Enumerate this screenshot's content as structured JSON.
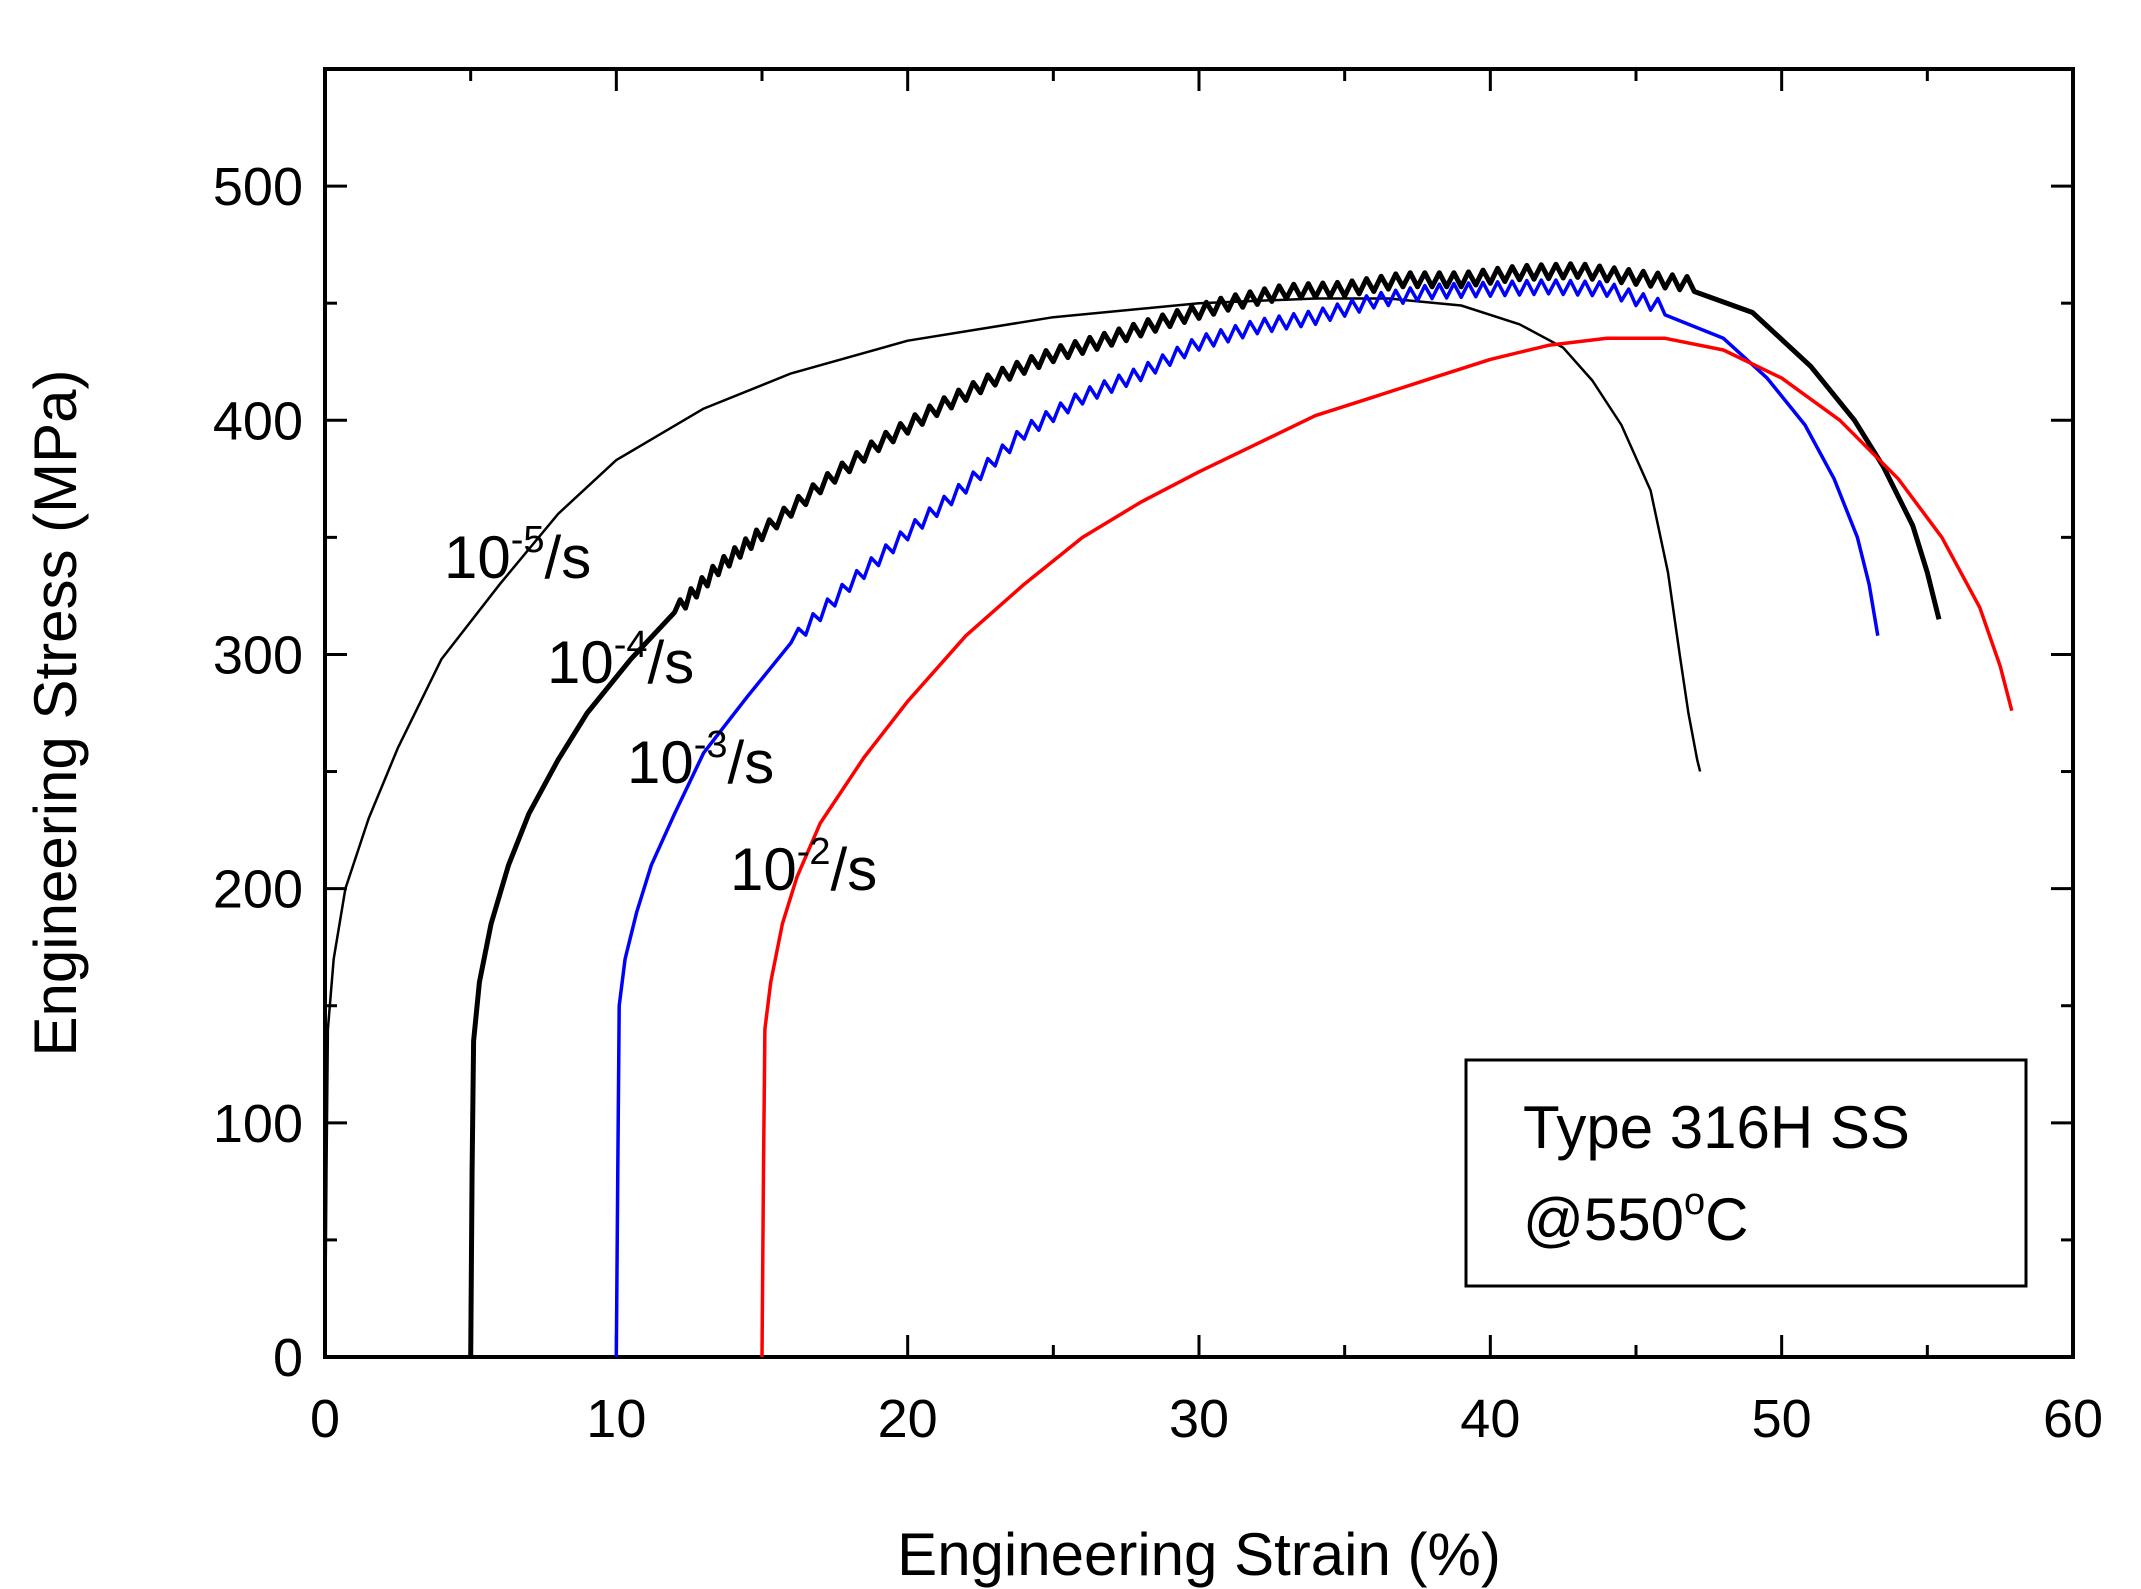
{
  "chart_data": {
    "type": "line",
    "xlabel": "Engineering Strain (%)",
    "ylabel": "Engineering Stress (MPa)",
    "xlim": [
      0,
      60
    ],
    "ylim": [
      0,
      550
    ],
    "x_ticks": [
      0,
      10,
      20,
      30,
      40,
      50,
      60
    ],
    "y_ticks": [
      0,
      100,
      200,
      300,
      400,
      500
    ],
    "grid": false,
    "legend": {
      "position": "bottom-right",
      "line1": "Type 316H SS",
      "line2_prefix": "@550",
      "line2_sup": "o",
      "line2_suffix": "C"
    },
    "series": [
      {
        "name": "10^-5/s",
        "label_base": "10",
        "label_exp": "-5",
        "label_unit": "/s",
        "color": "#000000",
        "jagged": false,
        "points": [
          [
            0,
            0
          ],
          [
            0.05,
            80
          ],
          [
            0.1,
            140
          ],
          [
            0.3,
            170
          ],
          [
            0.7,
            200
          ],
          [
            1.5,
            230
          ],
          [
            2.5,
            260
          ],
          [
            4,
            298
          ],
          [
            6,
            330
          ],
          [
            8,
            360
          ],
          [
            10,
            383
          ],
          [
            13,
            405
          ],
          [
            16,
            420
          ],
          [
            20,
            434
          ],
          [
            25,
            444
          ],
          [
            30,
            450
          ],
          [
            34,
            452
          ],
          [
            36.5,
            452
          ],
          [
            39,
            449
          ],
          [
            41,
            441
          ],
          [
            42.5,
            431
          ],
          [
            43.5,
            417
          ],
          [
            44.5,
            398
          ],
          [
            45.5,
            370
          ],
          [
            46.1,
            335
          ],
          [
            46.5,
            300
          ],
          [
            46.8,
            275
          ],
          [
            47.1,
            255
          ],
          [
            47.2,
            250
          ]
        ]
      },
      {
        "name": "10^-4/s",
        "label_base": "10",
        "label_exp": "-4",
        "label_unit": "/s",
        "color": "#000000",
        "jagged": true,
        "points": [
          [
            5,
            0
          ],
          [
            5.05,
            80
          ],
          [
            5.1,
            135
          ],
          [
            5.3,
            160
          ],
          [
            5.7,
            185
          ],
          [
            6.3,
            210
          ],
          [
            7,
            232
          ],
          [
            8,
            255
          ],
          [
            9,
            275
          ],
          [
            10.5,
            298
          ],
          [
            12,
            318
          ],
          [
            13.5,
            337
          ],
          [
            15,
            352
          ],
          [
            17,
            372
          ],
          [
            19,
            390
          ],
          [
            21,
            405
          ],
          [
            23,
            418
          ],
          [
            25,
            428
          ],
          [
            27,
            435
          ],
          [
            29,
            443
          ],
          [
            31,
            450
          ],
          [
            33,
            455
          ],
          [
            35,
            456
          ],
          [
            37,
            460
          ],
          [
            39,
            460
          ],
          [
            41,
            463
          ],
          [
            43,
            464
          ],
          [
            45,
            461
          ],
          [
            47,
            458
          ],
          [
            49,
            446
          ],
          [
            51,
            423
          ],
          [
            52.5,
            400
          ],
          [
            53.5,
            380
          ],
          [
            54.5,
            355
          ],
          [
            55,
            335
          ],
          [
            55.4,
            315
          ]
        ]
      },
      {
        "name": "10^-3/s",
        "label_base": "10",
        "label_exp": "-3",
        "label_unit": "/s",
        "color": "#0000ff",
        "jagged": true,
        "points": [
          [
            10,
            0
          ],
          [
            10.05,
            80
          ],
          [
            10.1,
            150
          ],
          [
            10.3,
            170
          ],
          [
            10.7,
            190
          ],
          [
            11.2,
            210
          ],
          [
            12,
            232
          ],
          [
            13,
            258
          ],
          [
            14.5,
            282
          ],
          [
            16,
            305
          ],
          [
            18,
            330
          ],
          [
            20,
            352
          ],
          [
            22,
            372
          ],
          [
            24,
            395
          ],
          [
            26,
            410
          ],
          [
            28,
            420
          ],
          [
            30,
            433
          ],
          [
            32,
            440
          ],
          [
            34,
            444
          ],
          [
            36,
            451
          ],
          [
            38,
            455
          ],
          [
            40,
            456
          ],
          [
            42,
            457
          ],
          [
            44,
            456
          ],
          [
            46,
            448
          ],
          [
            48,
            435
          ],
          [
            49.5,
            418
          ],
          [
            50.8,
            398
          ],
          [
            51.8,
            375
          ],
          [
            52.6,
            350
          ],
          [
            53,
            330
          ],
          [
            53.3,
            308
          ]
        ]
      },
      {
        "name": "10^-2/s",
        "label_base": "10",
        "label_exp": "-2",
        "label_unit": "/s",
        "color": "#ff0000",
        "jagged": false,
        "points": [
          [
            15,
            0
          ],
          [
            15.05,
            80
          ],
          [
            15.1,
            140
          ],
          [
            15.3,
            160
          ],
          [
            15.7,
            185
          ],
          [
            16.2,
            205
          ],
          [
            17,
            228
          ],
          [
            18.5,
            256
          ],
          [
            20,
            280
          ],
          [
            22,
            308
          ],
          [
            24,
            330
          ],
          [
            26,
            350
          ],
          [
            28,
            365
          ],
          [
            30,
            378
          ],
          [
            32,
            390
          ],
          [
            34,
            402
          ],
          [
            36,
            410
          ],
          [
            38,
            418
          ],
          [
            40,
            426
          ],
          [
            42,
            432
          ],
          [
            44,
            435
          ],
          [
            46,
            435
          ],
          [
            48,
            430
          ],
          [
            50,
            418
          ],
          [
            52,
            400
          ],
          [
            54,
            375
          ],
          [
            55.5,
            350
          ],
          [
            56.8,
            320
          ],
          [
            57.5,
            295
          ],
          [
            57.9,
            276
          ]
        ]
      }
    ]
  }
}
